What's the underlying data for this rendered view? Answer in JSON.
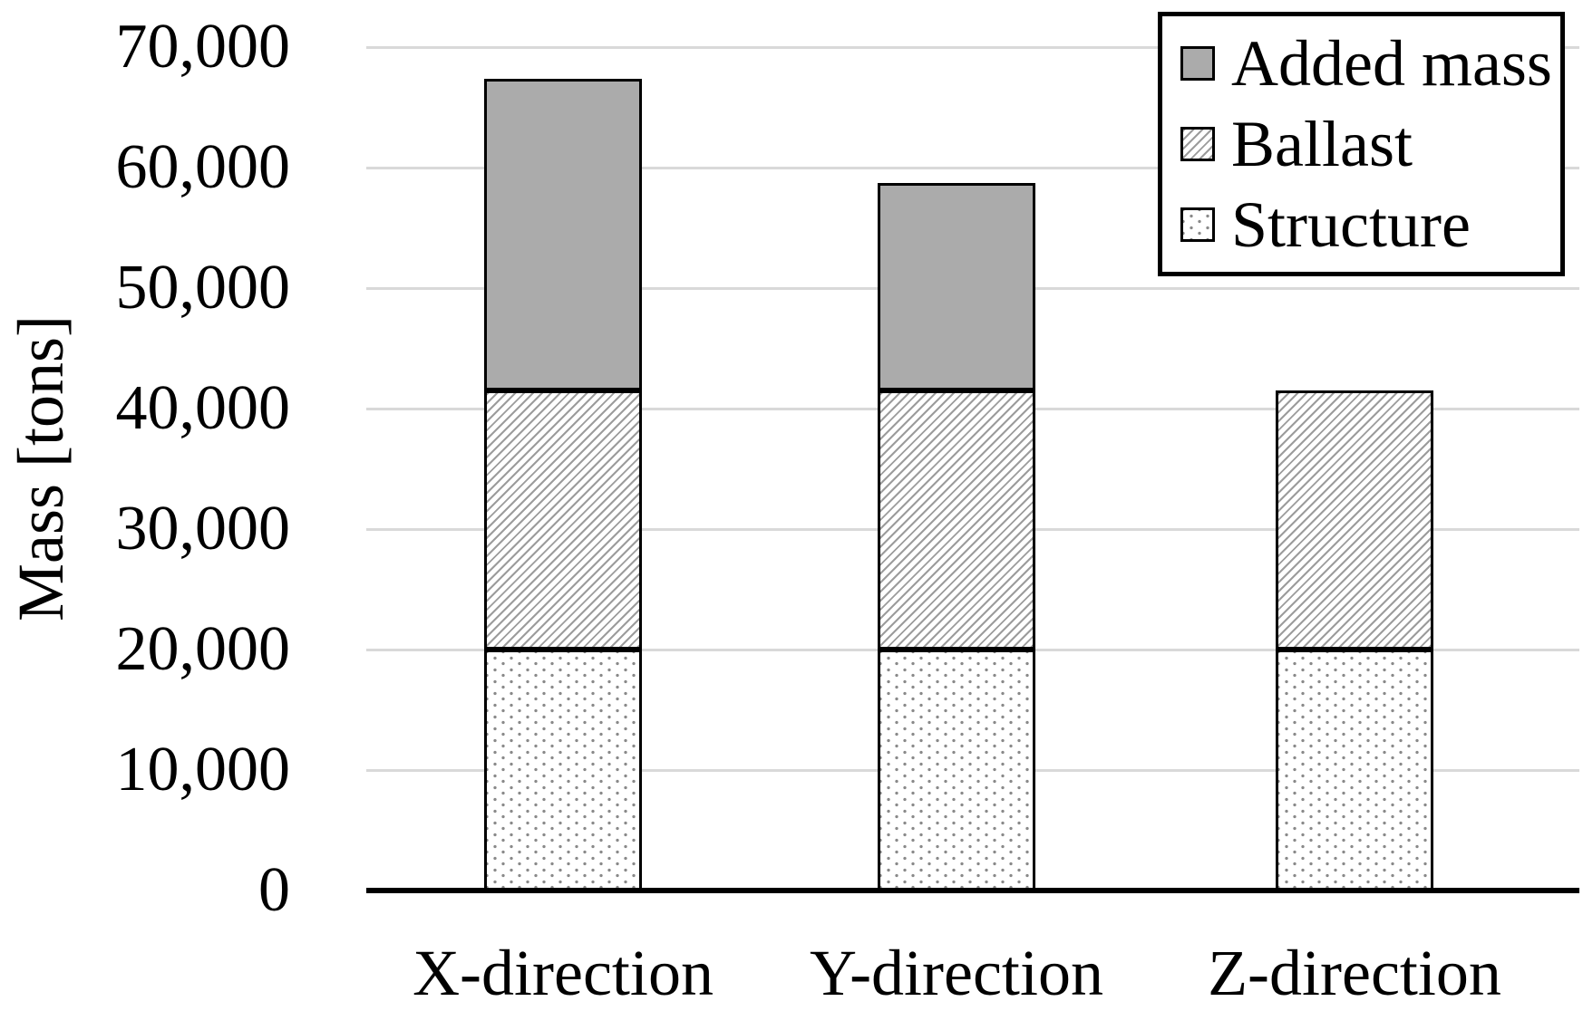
{
  "chart_data": {
    "type": "bar",
    "stacked": true,
    "title": "",
    "categories": [
      "X-direction",
      "Y-direction",
      "Z-direction"
    ],
    "series": [
      {
        "name": "Structure",
        "pattern": "dotted",
        "values": [
          20000,
          20000,
          20000
        ]
      },
      {
        "name": "Ballast",
        "pattern": "diagonal-hatch",
        "values": [
          21500,
          21500,
          21500
        ]
      },
      {
        "name": "Added mass",
        "pattern": "solid-gray",
        "values": [
          25900,
          17200,
          0
        ]
      }
    ],
    "totals": [
      67400,
      58700,
      41500
    ],
    "xlabel": "",
    "ylabel": "Mass [tons]",
    "ylim": [
      0,
      70000
    ],
    "yticks": [
      0,
      10000,
      20000,
      30000,
      40000,
      50000,
      60000,
      70000
    ],
    "ytick_labels": [
      "0",
      "10,000",
      "20,000",
      "30,000",
      "40,000",
      "50,000",
      "60,000",
      "70,000"
    ],
    "grid": "horizontal",
    "legend_position": "top-right-inside",
    "legend_order": [
      "Added mass",
      "Ballast",
      "Structure"
    ],
    "colors": {
      "added_mass_fill": "#ABABAB",
      "hatch_line": "#9C9C9C",
      "dot": "#8A8A8A",
      "gridline": "#D9D9D9",
      "axis": "#000000",
      "bar_border": "#000000",
      "background": "#FFFFFF"
    }
  }
}
